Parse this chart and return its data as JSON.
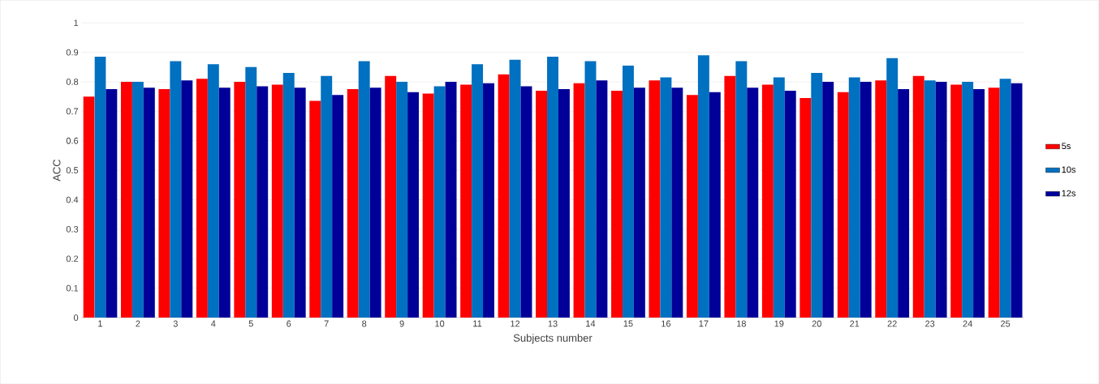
{
  "chart_data": {
    "type": "bar",
    "xlabel": "Subjects number",
    "ylabel": "ACC",
    "categories": [
      "1",
      "2",
      "3",
      "4",
      "5",
      "6",
      "7",
      "8",
      "9",
      "10",
      "11",
      "12",
      "13",
      "14",
      "15",
      "16",
      "17",
      "18",
      "19",
      "20",
      "21",
      "22",
      "23",
      "24",
      "25"
    ],
    "series": [
      {
        "name": "5s",
        "color": "#ff0000",
        "values": [
          0.75,
          0.8,
          0.775,
          0.81,
          0.8,
          0.79,
          0.735,
          0.775,
          0.82,
          0.76,
          0.79,
          0.825,
          0.77,
          0.795,
          0.77,
          0.805,
          0.755,
          0.82,
          0.79,
          0.745,
          0.765,
          0.805,
          0.82,
          0.79,
          0.78
        ]
      },
      {
        "name": "10s",
        "color": "#0070c0",
        "values": [
          0.885,
          0.8,
          0.87,
          0.86,
          0.85,
          0.83,
          0.82,
          0.87,
          0.8,
          0.785,
          0.86,
          0.875,
          0.885,
          0.87,
          0.855,
          0.815,
          0.89,
          0.87,
          0.815,
          0.83,
          0.815,
          0.88,
          0.805,
          0.8,
          0.81
        ]
      },
      {
        "name": "12s",
        "color": "#000099",
        "values": [
          0.775,
          0.78,
          0.805,
          0.78,
          0.785,
          0.78,
          0.755,
          0.78,
          0.765,
          0.8,
          0.795,
          0.785,
          0.775,
          0.805,
          0.78,
          0.78,
          0.765,
          0.78,
          0.77,
          0.8,
          0.8,
          0.775,
          0.8,
          0.775,
          0.795
        ]
      }
    ],
    "ylim": [
      0,
      1
    ],
    "yticks": [
      0,
      0.1,
      0.2,
      0.3,
      0.4,
      0.5,
      0.6,
      0.7,
      0.8,
      0.9,
      1
    ],
    "grid": "y",
    "legend": "right"
  }
}
